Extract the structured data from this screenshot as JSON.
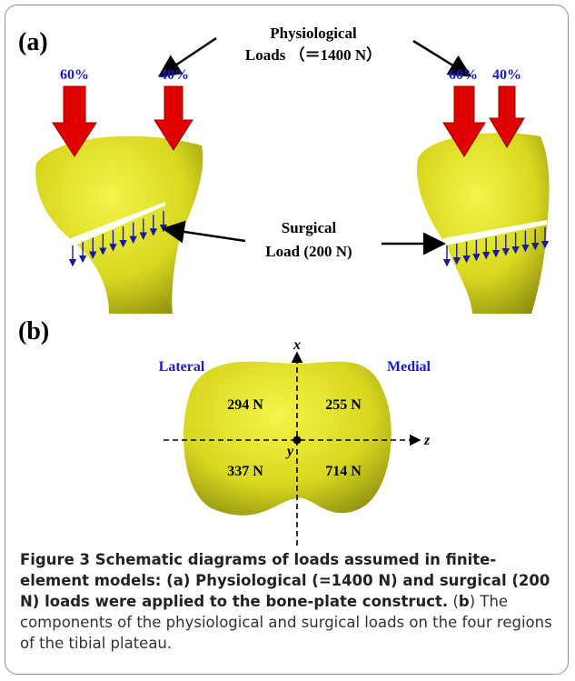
{
  "panel_a": {
    "label": "(a)",
    "physiological": {
      "line1": "Physiological",
      "line2": "Loads （＝1400 N）"
    },
    "percents": [
      "60%",
      "40%",
      "60%",
      "40%"
    ],
    "surgical": {
      "line1": "Surgical",
      "line2": "Load (200 N)"
    }
  },
  "panel_b": {
    "label": "(b)",
    "axes": {
      "x": "x",
      "z": "z",
      "y": "y"
    },
    "lateral": "Lateral",
    "medial": "Medial",
    "regions": [
      "294 N",
      "255 N",
      "337 N",
      "714 N"
    ]
  },
  "caption": {
    "title": "Figure 3 Schematic diagrams of loads assumed in finite-element models: (a) Physiological (=1400 N) and surgical (200 N) loads were applied to the bone-plate construct.",
    "open": "(",
    "panel": "b",
    "text": ") The components of the physiological and surgical loads on the four regions of the tibial plateau."
  }
}
